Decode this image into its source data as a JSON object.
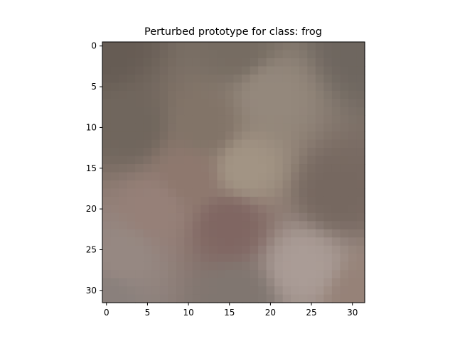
{
  "chart_data": {
    "type": "heatmap",
    "title": "Perturbed prototype for class: frog",
    "xlabel": "",
    "ylabel": "",
    "grid": false,
    "xlim": [
      -0.5,
      31.5
    ],
    "ylim": [
      31.5,
      -0.5
    ],
    "x_ticks": [
      0,
      5,
      10,
      15,
      20,
      25,
      30
    ],
    "y_ticks": [
      0,
      5,
      10,
      15,
      20,
      25,
      30
    ],
    "x_tick_labels": [
      "0",
      "5",
      "10",
      "15",
      "20",
      "25",
      "30"
    ],
    "y_tick_labels": [
      "0",
      "5",
      "10",
      "15",
      "20",
      "25",
      "30"
    ],
    "image_size": [
      32,
      32
    ],
    "pixel_color_description": "blurred RGB image, mostly grey-brown with reddish-brown patches lower-middle and a lighter patch lower-right",
    "color_anchors": [
      {
        "row": 0,
        "col": 0,
        "rgb": [
          102,
          92,
          84
        ]
      },
      {
        "row": 0,
        "col": 16,
        "rgb": [
          118,
          108,
          98
        ]
      },
      {
        "row": 0,
        "col": 31,
        "rgb": [
          110,
          102,
          95
        ]
      },
      {
        "row": 6,
        "col": 20,
        "rgb": [
          148,
          136,
          124
        ]
      },
      {
        "row": 10,
        "col": 3,
        "rgb": [
          112,
          102,
          93
        ]
      },
      {
        "row": 10,
        "col": 12,
        "rgb": [
          130,
          116,
          104
        ]
      },
      {
        "row": 15,
        "col": 17,
        "rgb": [
          162,
          148,
          132
        ]
      },
      {
        "row": 16,
        "col": 10,
        "rgb": [
          142,
          120,
          110
        ]
      },
      {
        "row": 18,
        "col": 28,
        "rgb": [
          118,
          104,
          96
        ]
      },
      {
        "row": 20,
        "col": 6,
        "rgb": [
          150,
          128,
          120
        ]
      },
      {
        "row": 22,
        "col": 15,
        "rgb": [
          128,
          102,
          98
        ]
      },
      {
        "row": 26,
        "col": 2,
        "rgb": [
          150,
          136,
          130
        ]
      },
      {
        "row": 27,
        "col": 24,
        "rgb": [
          170,
          156,
          150
        ]
      },
      {
        "row": 31,
        "col": 0,
        "rgb": [
          138,
          128,
          124
        ]
      },
      {
        "row": 31,
        "col": 16,
        "rgb": [
          128,
          118,
          112
        ]
      },
      {
        "row": 31,
        "col": 31,
        "rgb": [
          150,
          130,
          120
        ]
      }
    ]
  }
}
